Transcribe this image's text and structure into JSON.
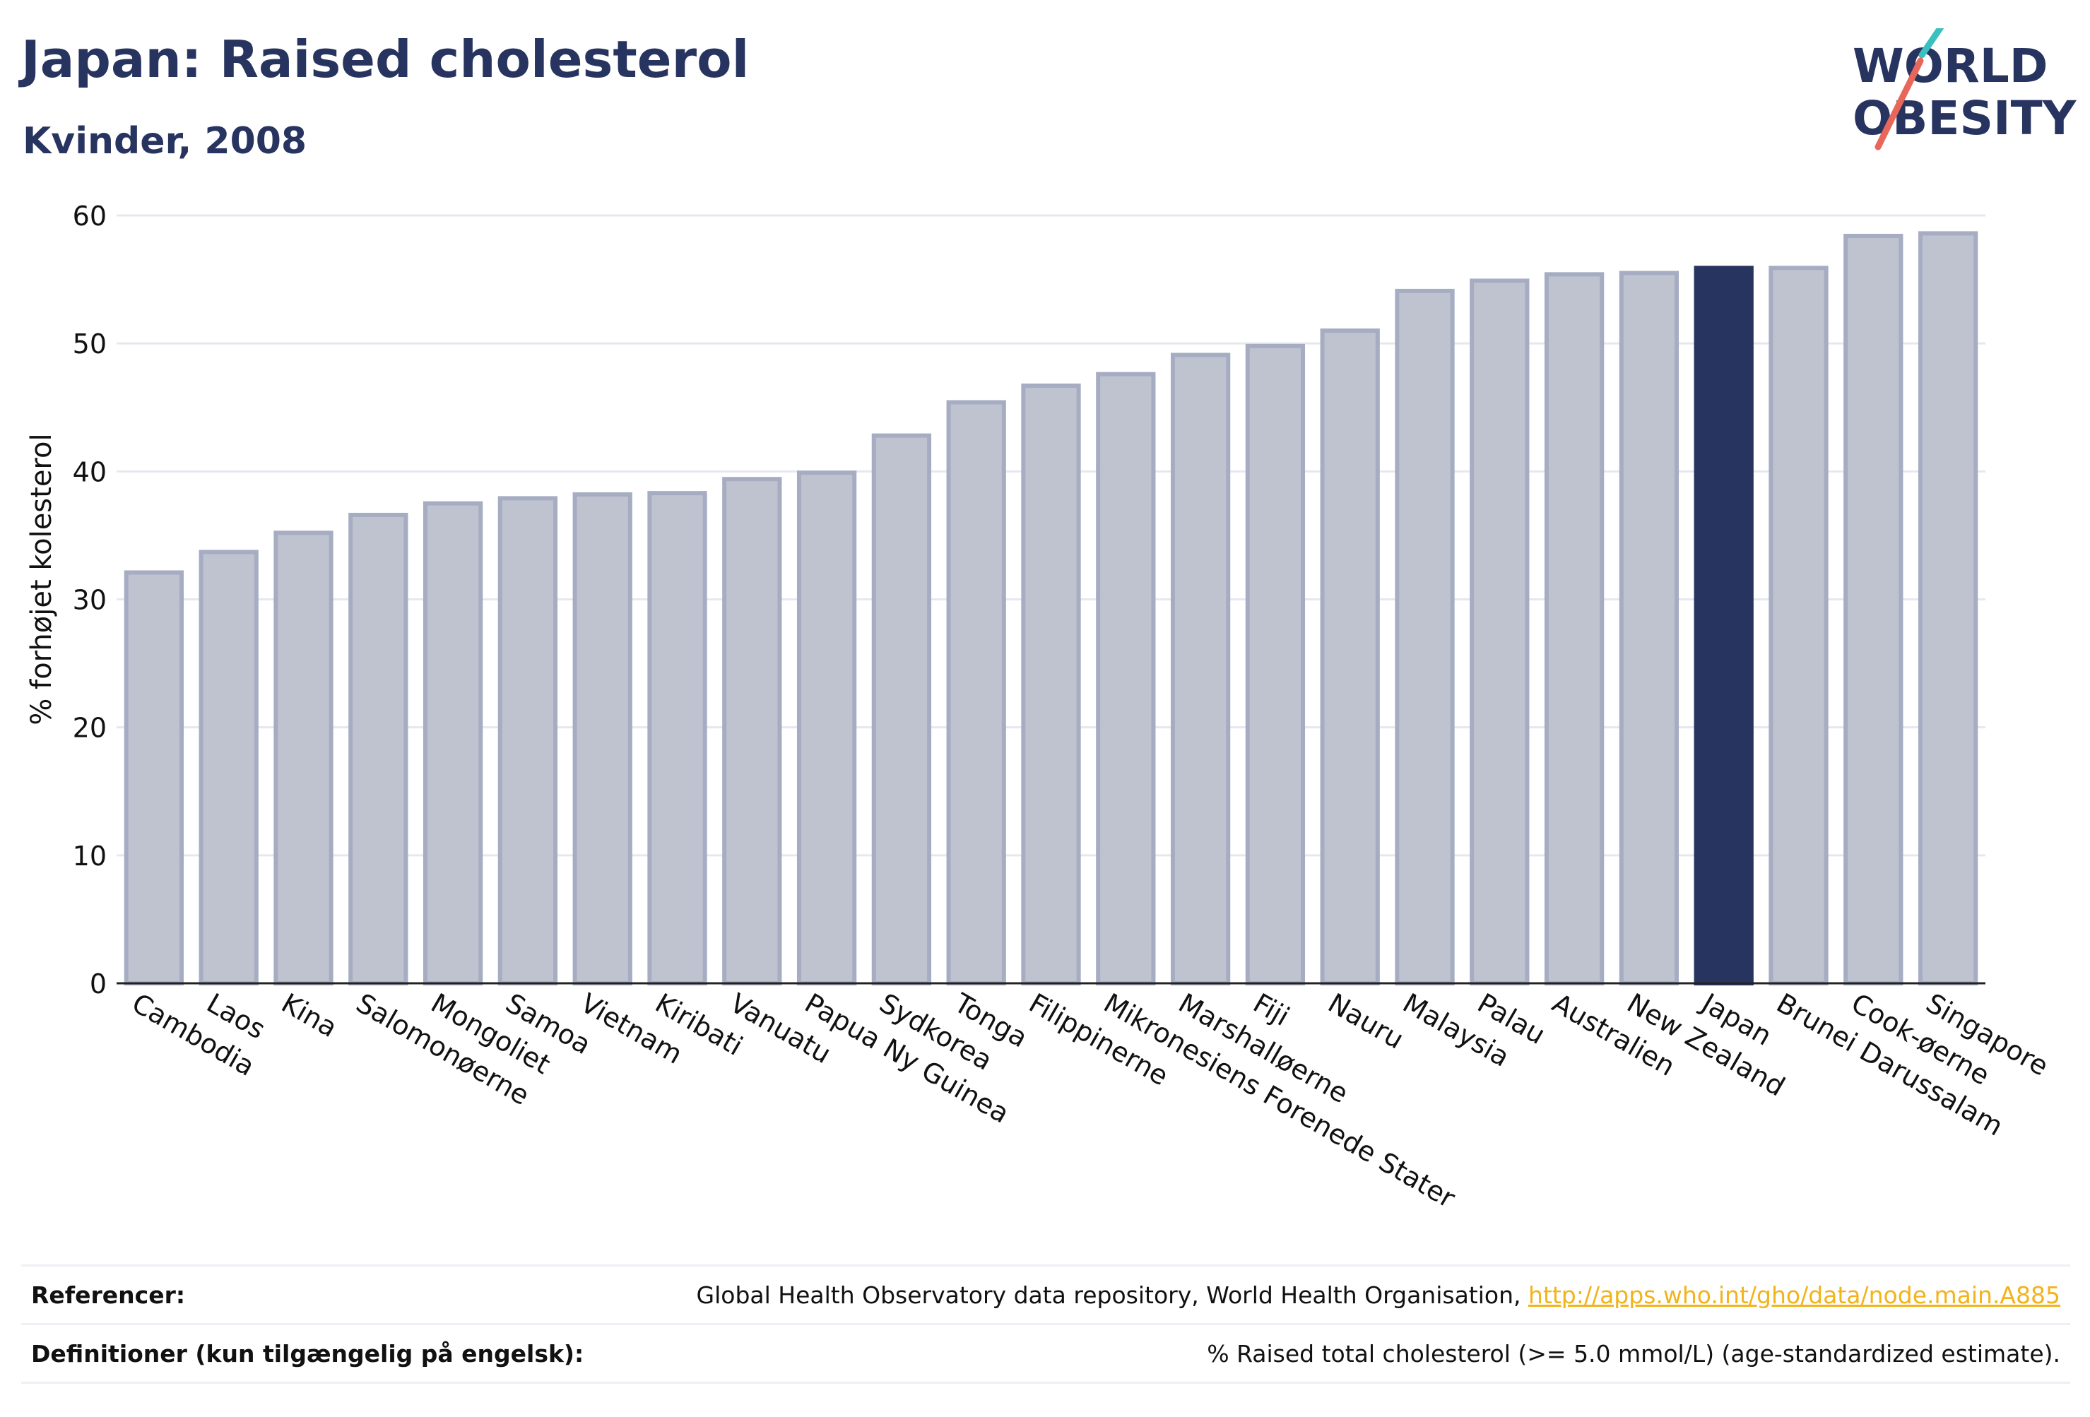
{
  "header": {
    "title": "Japan: Raised cholesterol",
    "subtitle": "Kvinder, 2008"
  },
  "logo": {
    "line1": "WORLD",
    "line2": "OBESITY",
    "colors": {
      "text": "#283460",
      "accent_teal": "#3bbfbf",
      "accent_red": "#e8675a"
    }
  },
  "colors": {
    "bar_default": "#bfc3d0",
    "bar_default_stroke": "#a6adc2",
    "bar_highlight": "#283460",
    "grid": "#e6e8ee",
    "axis": "#222222"
  },
  "chart_data": {
    "type": "bar",
    "ylabel": "% forhøjet kolesterol",
    "ylim": [
      0,
      60
    ],
    "yticks": [
      0,
      10,
      20,
      30,
      40,
      50,
      60
    ],
    "grid": true,
    "highlight": "Japan",
    "categories": [
      "Cambodia",
      "Laos",
      "Kina",
      "Salomonøerne",
      "Mongoliet",
      "Samoa",
      "Vietnam",
      "Kiribati",
      "Vanuatu",
      "Papua Ny Guinea",
      "Sydkorea",
      "Tonga",
      "Filippinerne",
      "Mikronesiens Forenede Stater",
      "Marshalløerne",
      "Fiji",
      "Nauru",
      "Malaysia",
      "Palau",
      "Australien",
      "New Zealand",
      "Japan",
      "Brunei Darussalam",
      "Cook-øerne",
      "Singapore"
    ],
    "values": [
      32.1,
      33.7,
      35.2,
      36.6,
      37.5,
      37.9,
      38.2,
      38.3,
      39.4,
      39.9,
      42.8,
      45.4,
      46.7,
      47.6,
      49.1,
      49.8,
      51.0,
      54.1,
      54.9,
      55.4,
      55.5,
      55.9,
      55.9,
      58.4,
      58.6
    ]
  },
  "references": {
    "ref_label": "Referencer:",
    "ref_text": "Global Health Observatory data repository, World Health Organisation, ",
    "ref_link": "http://apps.who.int/gho/data/node.main.A885",
    "def_label": "Definitioner (kun tilgængelig på engelsk):",
    "def_text": "% Raised total cholesterol (>= 5.0 mmol/L) (age-standardized estimate)."
  }
}
